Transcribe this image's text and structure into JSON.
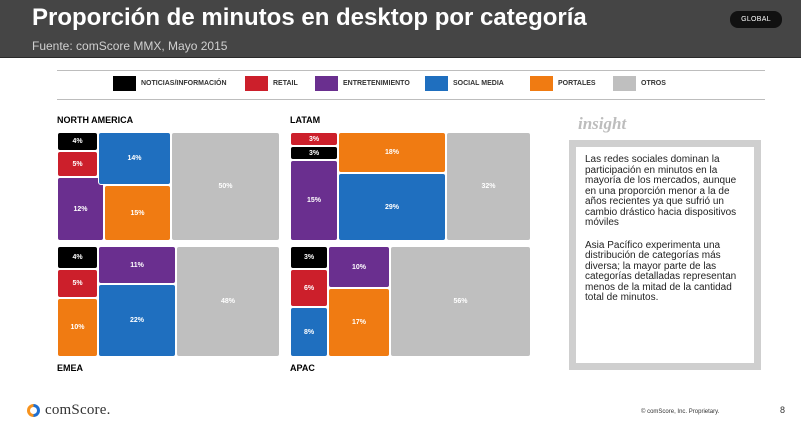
{
  "header": {
    "title": "Proporción de minutos en desktop por categoría",
    "subtitle": "Fuente: comScore MMX, Mayo 2015",
    "badge": "GLOBAL"
  },
  "chart_data": {
    "type": "treemap",
    "legend_position": "top",
    "categories": [
      {
        "key": "noticias",
        "label": "NOTICIAS/INFORMACIÓN",
        "color": "#000000"
      },
      {
        "key": "retail",
        "label": "RETAIL",
        "color": "#cc1f2b"
      },
      {
        "key": "entretenimiento",
        "label": "ENTRETENIMIENTO",
        "color": "#6a2f8f"
      },
      {
        "key": "social",
        "label": "SOCIAL MEDIA",
        "color": "#1f6fbf"
      },
      {
        "key": "portales",
        "label": "PORTALES",
        "color": "#f07b12"
      },
      {
        "key": "otros",
        "label": "OTROS",
        "color": "#bfbfbf"
      }
    ],
    "regions": [
      {
        "name": "NORTH AMERICA",
        "values": {
          "noticias": "4%",
          "retail": "5%",
          "entretenimiento": "12%",
          "social": "14%",
          "portales": "15%",
          "otros": "50%"
        }
      },
      {
        "name": "LATAM",
        "values": {
          "retail": "3%",
          "noticias": "3%",
          "entretenimiento": "15%",
          "portales": "18%",
          "social": "29%",
          "otros": "32%"
        }
      },
      {
        "name": "EMEA",
        "values": {
          "noticias": "4%",
          "retail": "5%",
          "portales": "10%",
          "entretenimiento": "11%",
          "social": "22%",
          "otros": "48%"
        }
      },
      {
        "name": "APAC",
        "values": {
          "noticias": "3%",
          "retail": "6%",
          "social": "8%",
          "entretenimiento": "10%",
          "portales": "17%",
          "otros": "56%"
        }
      }
    ]
  },
  "insight": {
    "title": "insight",
    "paragraphs": [
      "Las redes sociales dominan la participación en minutos en la mayoría de los mercados, aunque en una proporción menor a la de años recientes ya que sufrió un cambio drástico hacia dispositivos móviles",
      "Asia Pacífico experimenta una distribución de categorías más diversa; la mayor parte de las categorías detalladas representan menos de la mitad de la cantidad total de minutos."
    ]
  },
  "footer": {
    "logo_text": "comScore.",
    "copyright": "© comScore, Inc. Proprietary.",
    "page_number": "8"
  }
}
